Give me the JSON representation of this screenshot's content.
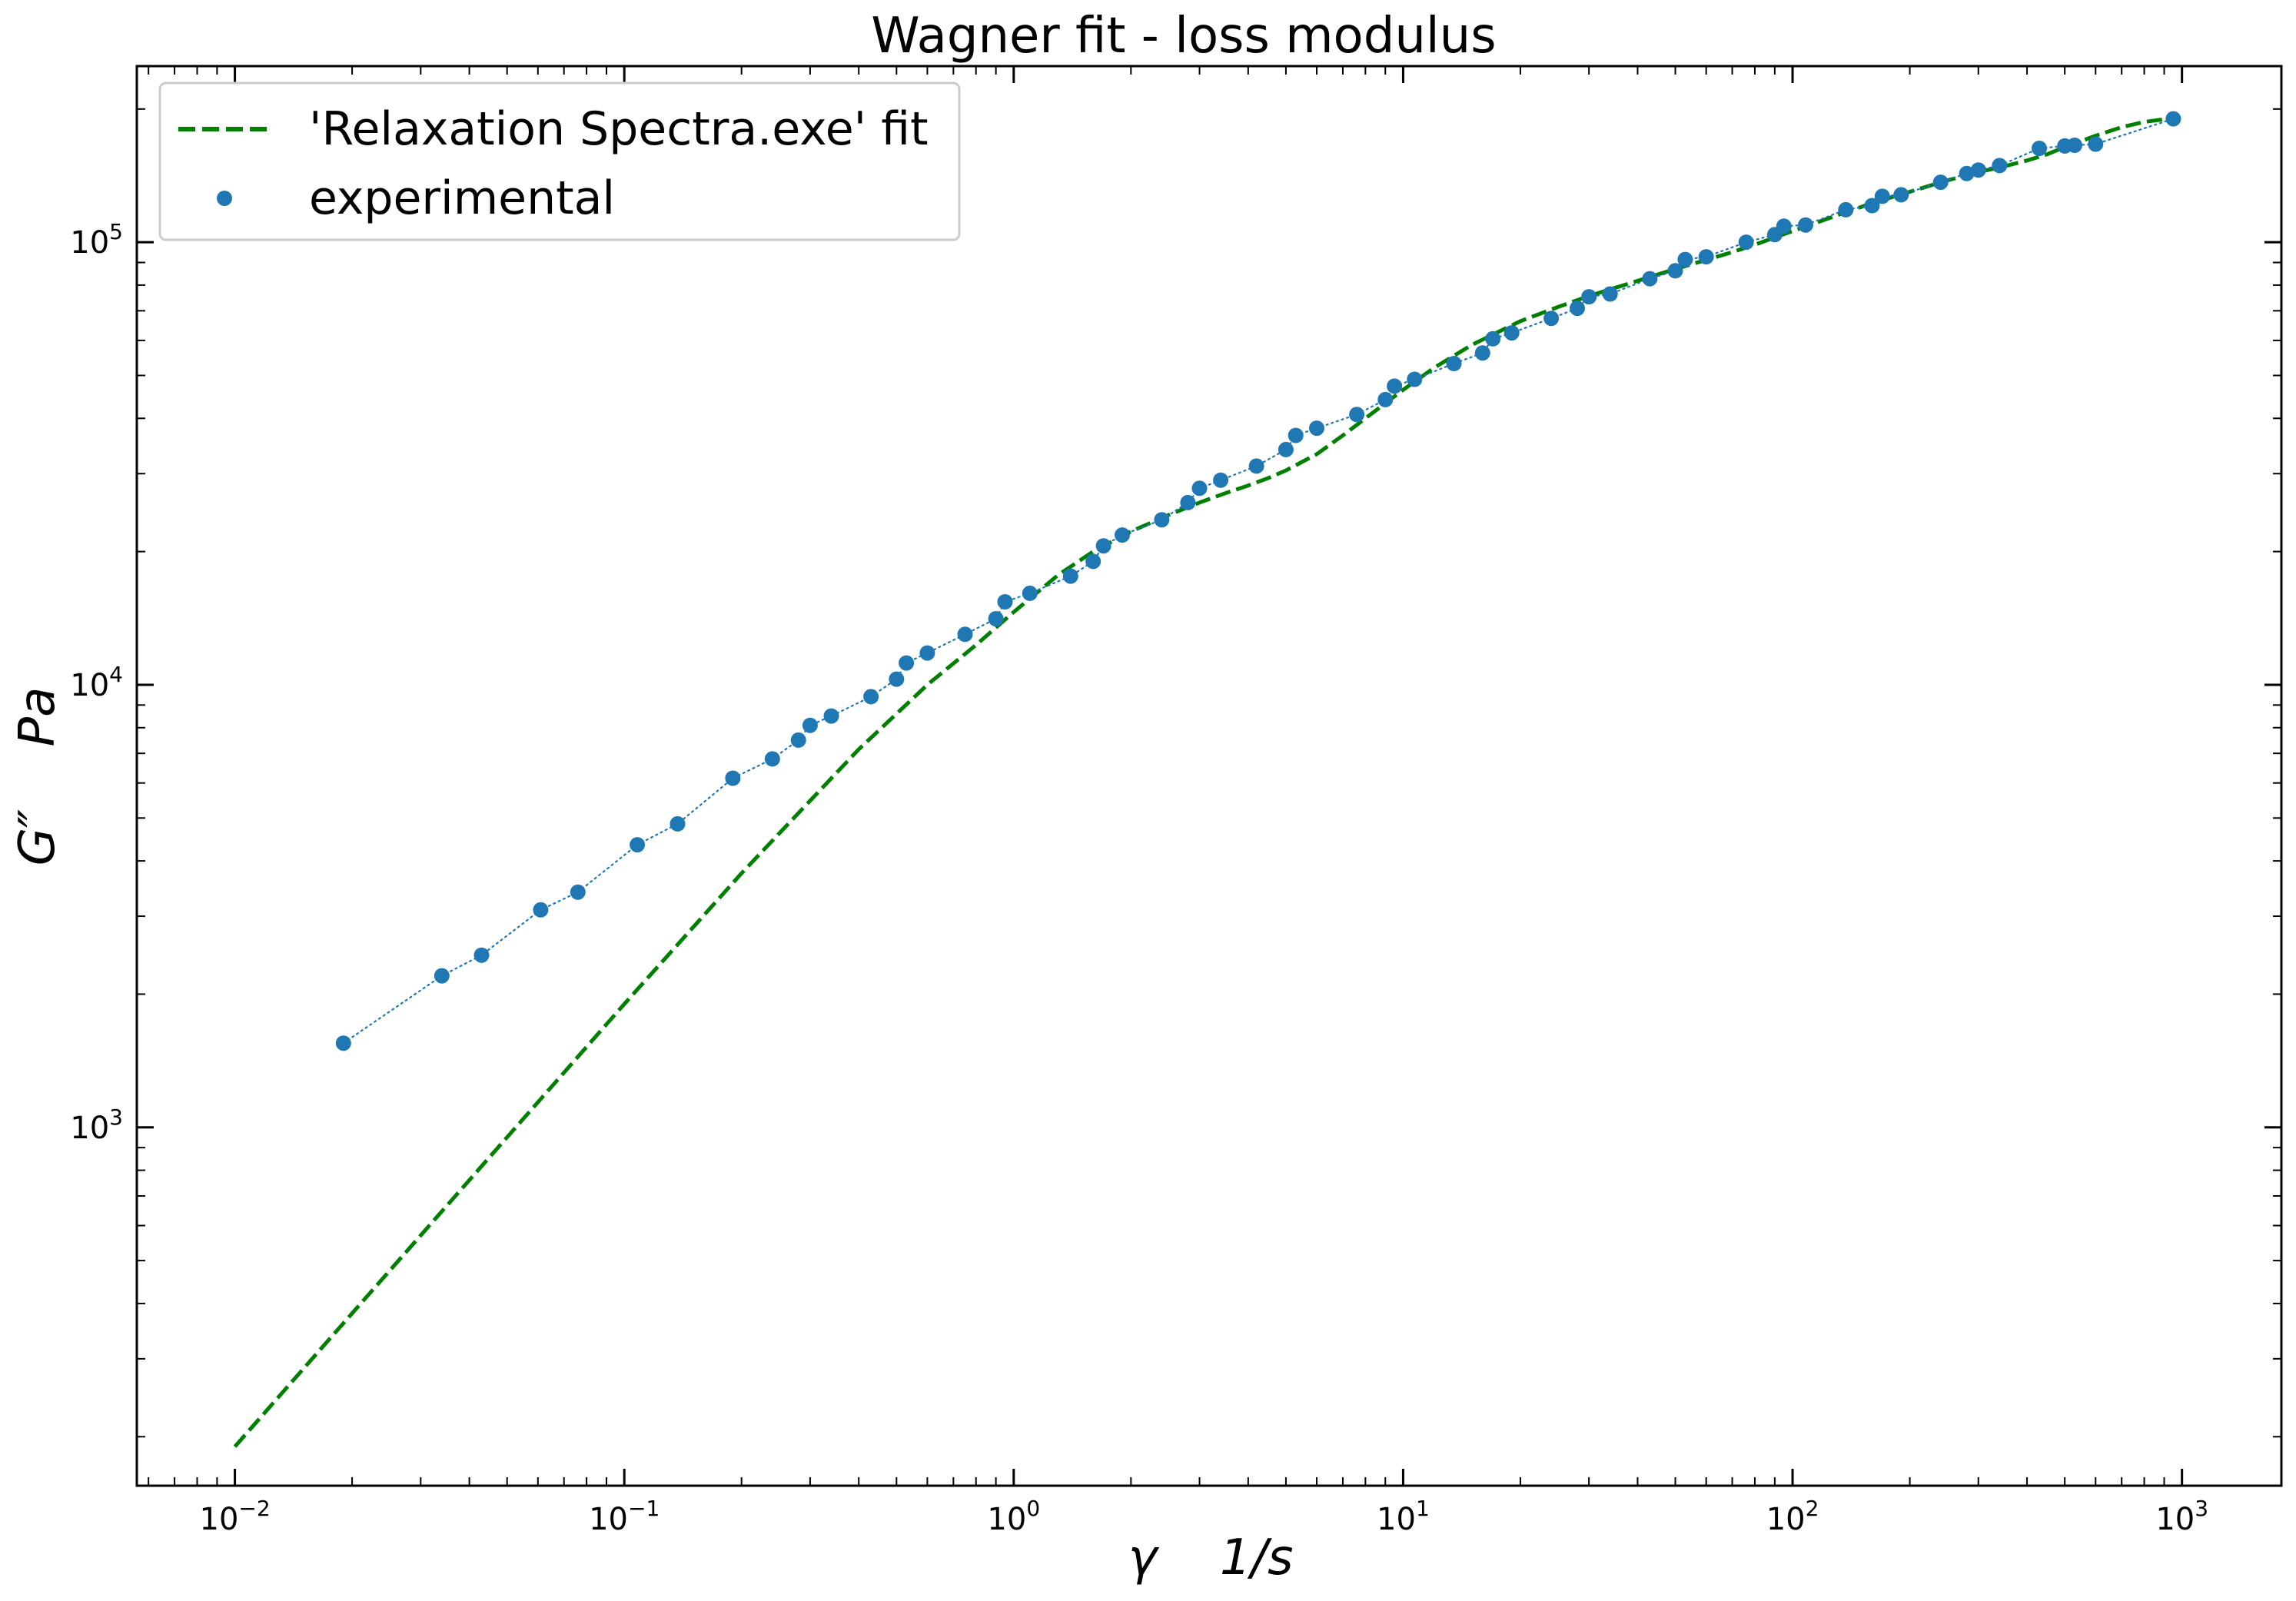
{
  "chart_data": {
    "type": "line",
    "title": "Wagner fit - loss modulus",
    "xlabel": "γ    1/s",
    "ylabel": "G″    Pa",
    "xscale": "log",
    "yscale": "log",
    "xlim": [
      0.0056,
      1800
    ],
    "ylim": [
      155,
      250000
    ],
    "xticks": [
      {
        "value": 0.01,
        "base": "10",
        "exp": "−2"
      },
      {
        "value": 0.1,
        "base": "10",
        "exp": "−1"
      },
      {
        "value": 1,
        "base": "10",
        "exp": "0"
      },
      {
        "value": 10,
        "base": "10",
        "exp": "1"
      },
      {
        "value": 100,
        "base": "10",
        "exp": "2"
      },
      {
        "value": 1000,
        "base": "10",
        "exp": "3"
      }
    ],
    "yticks": [
      {
        "value": 1000,
        "base": "10",
        "exp": "3"
      },
      {
        "value": 10000,
        "base": "10",
        "exp": "4"
      },
      {
        "value": 100000,
        "base": "10",
        "exp": "5"
      }
    ],
    "grid": false,
    "legend_position": "top-left",
    "series": [
      {
        "name": "'Relaxation Spectra.exe' fit",
        "style": "dashed-line",
        "color": "#008000",
        "x": [
          0.01,
          0.02,
          0.05,
          0.1,
          0.2,
          0.4,
          0.6,
          0.8,
          1.0,
          1.3,
          1.6,
          2.0,
          2.5,
          3.0,
          3.5,
          4.0,
          4.5,
          5.0,
          6.0,
          7.0,
          8.0,
          10,
          12,
          15,
          20,
          25,
          30,
          40,
          50,
          60,
          70,
          80,
          100,
          130,
          160,
          200,
          250,
          300,
          350,
          400,
          450,
          500,
          600,
          700,
          800,
          900,
          950
        ],
        "y": [
          190,
          380,
          950,
          1900,
          3750,
          7150,
          10000,
          12300,
          14600,
          17700,
          20000,
          22200,
          24200,
          25800,
          27100,
          28200,
          29300,
          30500,
          33200,
          36600,
          40000,
          46400,
          52000,
          58600,
          66300,
          71400,
          75600,
          81800,
          87000,
          91200,
          95000,
          98700,
          106000,
          115000,
          122500,
          130000,
          138000,
          144000,
          148500,
          153000,
          158000,
          164000,
          174000,
          182000,
          187000,
          189500,
          190500
        ]
      },
      {
        "name": "experimental",
        "style": "scatter-dotted",
        "color": "#1f77b4",
        "x": [
          0.019,
          0.034,
          0.043,
          0.061,
          0.076,
          0.108,
          0.137,
          0.19,
          0.24,
          0.28,
          0.3,
          0.34,
          0.43,
          0.5,
          0.53,
          0.6,
          0.75,
          0.9,
          0.95,
          1.1,
          1.4,
          1.6,
          1.7,
          1.9,
          2.4,
          2.8,
          3.0,
          3.4,
          4.2,
          5.0,
          5.3,
          6.0,
          7.6,
          9.0,
          9.5,
          10.7,
          13.5,
          16,
          17,
          19,
          24,
          28,
          30,
          34,
          43,
          50,
          53,
          60,
          76,
          90,
          95,
          108,
          137,
          160,
          170,
          190,
          240,
          280,
          300,
          340,
          430,
          500,
          530,
          600,
          950
        ],
        "y": [
          1550,
          2200,
          2450,
          3100,
          3400,
          4350,
          4850,
          6150,
          6800,
          7500,
          8100,
          8500,
          9400,
          10300,
          11200,
          11800,
          13000,
          14100,
          15400,
          16100,
          17600,
          19000,
          20600,
          21800,
          23600,
          25800,
          27800,
          29000,
          31200,
          34000,
          36600,
          38000,
          40800,
          44100,
          47300,
          49000,
          53200,
          56200,
          60500,
          62400,
          67300,
          70900,
          75300,
          76400,
          82700,
          86200,
          91400,
          92700,
          100000,
          104000,
          108700,
          109400,
          118400,
          121000,
          127000,
          128000,
          136600,
          143000,
          145600,
          149000,
          163000,
          165000,
          165600,
          166600,
          190000
        ]
      }
    ]
  }
}
